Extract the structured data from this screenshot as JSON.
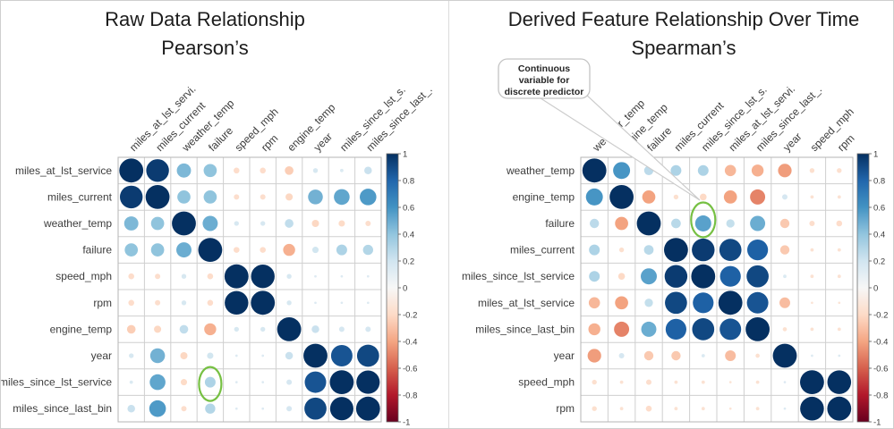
{
  "colors": {
    "highlight_green": "#76c043",
    "navy_max": "#053061",
    "red_min": "#67001f",
    "grid_line": "#cfcfcf",
    "divider": "#dcdcdc"
  },
  "chart_data": [
    {
      "type": "heatmap",
      "subtype": "bubble-correlogram",
      "title": "Raw Data Relationship",
      "subtitle": "Pearson’s",
      "value_range": [
        -1,
        1
      ],
      "rows": [
        "miles_at_lst_service",
        "miles_current",
        "weather_temp",
        "failure",
        "speed_mph",
        "rpm",
        "engine_temp",
        "year",
        "miles_since_lst_service",
        "miles_since_last_bin"
      ],
      "cols": [
        "miles_at_lst_servi.",
        "miles_current",
        "weather_temp",
        "failure",
        "speed_mph",
        "rpm",
        "engine_temp",
        "year",
        "miles_since_lst_s.",
        "miles_since_last_."
      ],
      "matrix": [
        [
          1,
          0.9,
          0.35,
          0.3,
          -0.06,
          -0.06,
          -0.13,
          0.04,
          0.02,
          0.1
        ],
        [
          0.9,
          1,
          0.3,
          0.3,
          -0.05,
          -0.05,
          -0.09,
          0.38,
          0.43,
          0.48
        ],
        [
          0.35,
          0.3,
          1,
          0.4,
          0.04,
          0.04,
          0.13,
          -0.09,
          -0.07,
          -0.05
        ],
        [
          0.3,
          0.3,
          0.4,
          1,
          -0.06,
          -0.06,
          -0.25,
          0.07,
          0.2,
          0.18
        ],
        [
          -0.06,
          -0.05,
          0.04,
          -0.06,
          1,
          0.97,
          0.04,
          0.01,
          0.01,
          0.01
        ],
        [
          -0.06,
          -0.05,
          0.04,
          -0.06,
          0.97,
          1,
          0.04,
          0.01,
          0.01,
          0.01
        ],
        [
          -0.13,
          -0.09,
          0.13,
          -0.25,
          0.04,
          0.04,
          1,
          0.1,
          0.05,
          0.05
        ],
        [
          0.04,
          0.38,
          -0.09,
          0.07,
          0.01,
          0.01,
          0.1,
          1,
          0.8,
          0.85
        ],
        [
          0.02,
          0.43,
          -0.07,
          0.2,
          0.01,
          0.01,
          0.05,
          0.8,
          1,
          0.95
        ],
        [
          0.1,
          0.48,
          -0.05,
          0.18,
          0.01,
          0.01,
          0.05,
          0.85,
          0.95,
          1
        ]
      ],
      "colorbar_ticks": [
        "1",
        "0.8",
        "0.6",
        "0.4",
        "0.2",
        "0",
        "-0.2",
        "-0.4",
        "-0.6",
        "-0.8",
        "-1"
      ],
      "highlight_cell": {
        "row": "miles_since_lst_service",
        "col": "failure",
        "row_index": 8,
        "col_index": 3
      }
    },
    {
      "type": "heatmap",
      "subtype": "bubble-correlogram",
      "title": "Derived Feature Relationship Over Time",
      "subtitle": "Spearman’s",
      "value_range": [
        -1,
        1
      ],
      "rows": [
        "weather_temp",
        "engine_temp",
        "failure",
        "miles_current",
        "miles_since_lst_service",
        "miles_at_lst_service",
        "miles_since_last_bin",
        "year",
        "speed_mph",
        "rpm"
      ],
      "cols": [
        "weather_temp",
        "engine_temp",
        "failure",
        "miles_current",
        "miles_since_lst_s.",
        "miles_at_lst_servi.",
        "miles_since_last_.",
        "year",
        "speed_mph",
        "rpm"
      ],
      "matrix": [
        [
          1,
          0.5,
          0.15,
          0.2,
          0.2,
          -0.22,
          -0.25,
          -0.32,
          -0.04,
          -0.04
        ],
        [
          0.5,
          1,
          -0.3,
          -0.04,
          -0.08,
          -0.3,
          -0.4,
          0.05,
          -0.02,
          -0.02
        ],
        [
          0.15,
          -0.3,
          1,
          0.16,
          0.45,
          0.12,
          0.4,
          -0.15,
          -0.05,
          -0.06
        ],
        [
          0.2,
          -0.04,
          0.16,
          1,
          0.9,
          0.85,
          0.75,
          -0.15,
          -0.02,
          -0.02
        ],
        [
          0.2,
          -0.08,
          0.45,
          0.9,
          1,
          0.75,
          0.85,
          0.02,
          -0.02,
          -0.02
        ],
        [
          -0.22,
          -0.3,
          0.12,
          0.85,
          0.75,
          1,
          0.8,
          -0.2,
          -0.01,
          -0.01
        ],
        [
          -0.25,
          -0.4,
          0.4,
          0.75,
          0.85,
          0.8,
          1,
          -0.03,
          -0.02,
          -0.02
        ],
        [
          -0.32,
          0.05,
          -0.15,
          -0.15,
          0.02,
          -0.2,
          -0.03,
          1,
          0.01,
          0.01
        ],
        [
          -0.04,
          -0.02,
          -0.05,
          -0.02,
          -0.02,
          -0.01,
          -0.02,
          0.01,
          1,
          0.98
        ],
        [
          -0.04,
          -0.02,
          -0.06,
          -0.02,
          -0.02,
          -0.01,
          -0.02,
          0.01,
          0.98,
          1
        ]
      ],
      "colorbar_ticks": [
        "1",
        "0.8",
        "0.6",
        "0.4",
        "0.2",
        "0",
        "-0.2",
        "-0.4",
        "-0.6",
        "-0.8",
        "-1"
      ],
      "annotation": {
        "lines": [
          "Continuous",
          "variable for",
          "discrete predictor"
        ],
        "text": "Continuous variable for discrete predictor",
        "target_row": "failure",
        "target_col": "miles_since_lst_s."
      },
      "highlight_cell": {
        "row": "failure",
        "col": "miles_since_lst_s.",
        "row_index": 2,
        "col_index": 4
      }
    }
  ]
}
